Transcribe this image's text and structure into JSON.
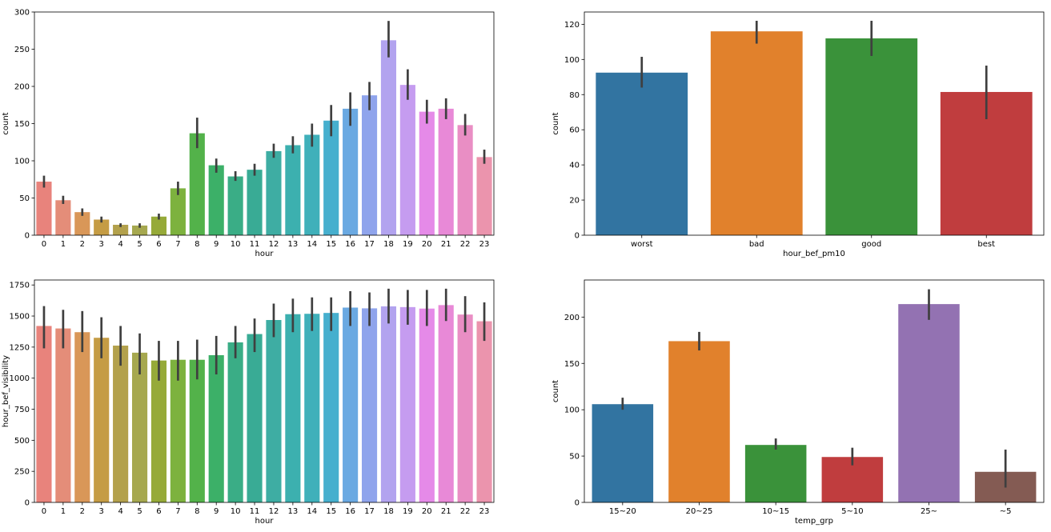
{
  "chart_data": [
    {
      "type": "bar",
      "title": "",
      "xlabel": "hour",
      "ylabel": "count",
      "ylim": [
        0,
        300
      ],
      "yticks": [
        0,
        50,
        100,
        150,
        200,
        250,
        300
      ],
      "categories": [
        "0",
        "1",
        "2",
        "3",
        "4",
        "5",
        "6",
        "7",
        "8",
        "9",
        "10",
        "11",
        "12",
        "13",
        "14",
        "15",
        "16",
        "17",
        "18",
        "19",
        "20",
        "21",
        "22",
        "23"
      ],
      "values": [
        72,
        47,
        31,
        21,
        14,
        13,
        25,
        63,
        137,
        94,
        79,
        88,
        113,
        121,
        135,
        154,
        170,
        188,
        262,
        202,
        166,
        170,
        148,
        105
      ],
      "err_low": [
        64,
        42,
        26,
        17,
        11,
        10,
        21,
        54,
        117,
        84,
        73,
        80,
        104,
        110,
        119,
        133,
        147,
        168,
        239,
        182,
        150,
        156,
        134,
        96
      ],
      "err_high": [
        80,
        53,
        36,
        25,
        16,
        16,
        29,
        72,
        158,
        103,
        86,
        96,
        123,
        133,
        150,
        175,
        192,
        206,
        288,
        223,
        182,
        184,
        163,
        115
      ],
      "colors": [
        "#e8837c",
        "#e48d79",
        "#d99758",
        "#c59c44",
        "#b3a14c",
        "#a6a84f",
        "#96aa39",
        "#7db23e",
        "#53b24a",
        "#3cb068",
        "#3aad86",
        "#39ab95",
        "#3eada3",
        "#3cb0af",
        "#3fb0ba",
        "#46afce",
        "#6aa9e2",
        "#8fa4ec",
        "#b2a3ef",
        "#c59cf0",
        "#e58ae8",
        "#e889d7",
        "#e98ec4",
        "#eb94ad"
      ]
    },
    {
      "type": "bar",
      "title": "",
      "xlabel": "hour_bef_pm10",
      "ylabel": "count",
      "ylim": [
        0,
        127
      ],
      "yticks": [
        0,
        20,
        40,
        60,
        80,
        100,
        120
      ],
      "categories": [
        "worst",
        "bad",
        "good",
        "best"
      ],
      "values": [
        92.5,
        116,
        112,
        81.5
      ],
      "err_low": [
        84,
        109,
        102,
        66
      ],
      "err_high": [
        101.5,
        122,
        122,
        96.5
      ],
      "colors": [
        "#3274a1",
        "#e1812c",
        "#3a923a",
        "#c03d3e"
      ]
    },
    {
      "type": "bar",
      "title": "",
      "xlabel": "hour",
      "ylabel": "hour_bef_visibility",
      "ylim": [
        0,
        1790
      ],
      "yticks": [
        0,
        250,
        500,
        750,
        1000,
        1250,
        1500,
        1750
      ],
      "categories": [
        "0",
        "1",
        "2",
        "3",
        "4",
        "5",
        "6",
        "7",
        "8",
        "9",
        "10",
        "11",
        "12",
        "13",
        "14",
        "15",
        "16",
        "17",
        "18",
        "19",
        "20",
        "21",
        "22",
        "23"
      ],
      "values": [
        1420,
        1400,
        1370,
        1325,
        1262,
        1205,
        1142,
        1148,
        1148,
        1185,
        1288,
        1355,
        1468,
        1515,
        1518,
        1525,
        1568,
        1562,
        1578,
        1572,
        1560,
        1588,
        1512,
        1458
      ],
      "err_low": [
        1240,
        1240,
        1210,
        1160,
        1100,
        1030,
        980,
        980,
        990,
        1030,
        1160,
        1210,
        1330,
        1370,
        1380,
        1380,
        1420,
        1420,
        1440,
        1430,
        1420,
        1460,
        1370,
        1300
      ],
      "err_high": [
        1580,
        1550,
        1540,
        1490,
        1420,
        1360,
        1300,
        1300,
        1310,
        1340,
        1420,
        1480,
        1600,
        1640,
        1650,
        1650,
        1700,
        1690,
        1720,
        1710,
        1710,
        1720,
        1660,
        1610
      ],
      "colors": [
        "#e8837c",
        "#e48d79",
        "#d99758",
        "#c59c44",
        "#b3a14c",
        "#a6a84f",
        "#96aa39",
        "#7db23e",
        "#53b24a",
        "#3cb068",
        "#3aad86",
        "#39ab95",
        "#3eada3",
        "#3cb0af",
        "#3fb0ba",
        "#46afce",
        "#6aa9e2",
        "#8fa4ec",
        "#b2a3ef",
        "#c59cf0",
        "#e58ae8",
        "#e889d7",
        "#e98ec4",
        "#eb94ad"
      ]
    },
    {
      "type": "bar",
      "title": "",
      "xlabel": "temp_grp",
      "ylabel": "count",
      "ylim": [
        0,
        240
      ],
      "yticks": [
        0,
        50,
        100,
        150,
        200
      ],
      "categories": [
        "15~20",
        "20~25",
        "10~15",
        "5~10",
        "25~",
        "~5"
      ],
      "values": [
        106,
        174,
        62,
        49,
        214,
        33
      ],
      "err_low": [
        100,
        164,
        57,
        40,
        197,
        16
      ],
      "err_high": [
        113,
        184,
        69,
        59,
        230,
        57
      ],
      "colors": [
        "#3274a1",
        "#e1812c",
        "#3a923a",
        "#c03d3e",
        "#9372b2",
        "#845b53"
      ]
    }
  ]
}
